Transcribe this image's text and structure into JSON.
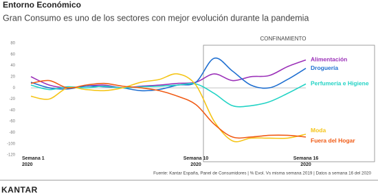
{
  "chart_data": {
    "type": "line",
    "title": "Entorno Económico",
    "subtitle": "Gran Consumo es uno de los sectores con mejor evolución durante la pandemia",
    "annotation": "CONFINAMIENTO",
    "source": "Fuente: Kantar España, Panel de Consumidores | % Evol. Vs misma semana 2019 | Datos a semana 16 del 2020",
    "brand": "KANTAR",
    "x": [
      1,
      2,
      3,
      4,
      5,
      6,
      7,
      8,
      9,
      10,
      11,
      12,
      13,
      14,
      15,
      16
    ],
    "xlim": [
      1,
      16
    ],
    "xticks": [
      {
        "value": 1,
        "label": "Semana 1"
      },
      {
        "value": 10,
        "label": "Semana 10"
      },
      {
        "value": 16,
        "label": "Semana 16"
      }
    ],
    "xtick_sublabels": [
      "2020",
      "2020",
      "2020"
    ],
    "ylim": [
      -120,
      80
    ],
    "yticks": [
      80,
      60,
      40,
      20,
      0,
      -20,
      -40,
      -60,
      -80,
      -100,
      -120
    ],
    "series": [
      {
        "name": "Alimentación",
        "color": "#9b30b8",
        "values": [
          20,
          5,
          0,
          3,
          5,
          0,
          3,
          5,
          8,
          10,
          25,
          13,
          20,
          22,
          38,
          50
        ]
      },
      {
        "name": "Droguería",
        "color": "#1f6fd1",
        "values": [
          10,
          0,
          -2,
          3,
          2,
          0,
          -5,
          -3,
          5,
          10,
          53,
          30,
          5,
          0,
          15,
          35
        ]
      },
      {
        "name": "Perfumería e Higiene",
        "color": "#22d3c5",
        "values": [
          5,
          -3,
          2,
          0,
          3,
          0,
          2,
          3,
          5,
          7,
          -10,
          -32,
          -32,
          -25,
          -10,
          7
        ]
      },
      {
        "name": "Moda",
        "color": "#f5c518",
        "values": [
          -15,
          -20,
          0,
          -3,
          -5,
          0,
          10,
          15,
          25,
          5,
          -60,
          -95,
          -90,
          -90,
          -90,
          -83
        ]
      },
      {
        "name": "Fuera del Hogar",
        "color": "#f05a14",
        "values": [
          8,
          13,
          0,
          5,
          8,
          3,
          0,
          -5,
          -15,
          -30,
          -65,
          -88,
          -88,
          -85,
          -85,
          -88
        ]
      }
    ]
  }
}
